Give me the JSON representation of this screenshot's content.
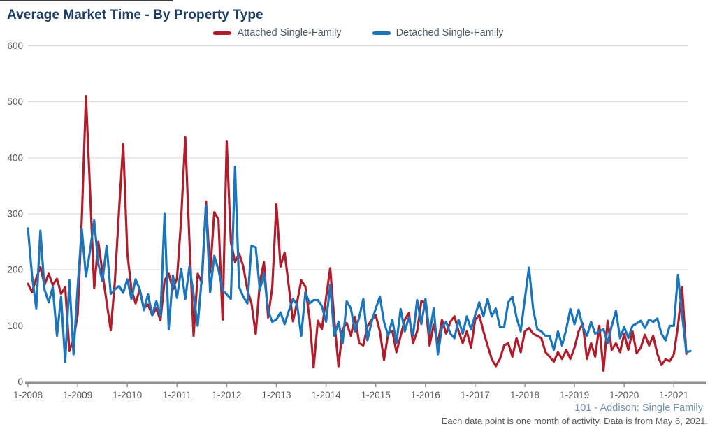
{
  "title": "Average Market Time - By Property Type",
  "legend": [
    {
      "label": "Attached Single-Family",
      "color": "#b01e2e"
    },
    {
      "label": "Detached Single-Family",
      "color": "#1b75bb"
    }
  ],
  "footer": {
    "source": "101 - Addison: Single Family",
    "note": "Each data point is one month of activity. Data is from May 6, 2021."
  },
  "colors": {
    "title": "#1d3d63",
    "axis_text": "#595959",
    "gridline": "#d6d6d6",
    "axis_line": "#8f8f8f",
    "attached": "#b01e2e",
    "detached": "#1b75bb",
    "footer_source": "#7191b3"
  },
  "chart_data": {
    "type": "line",
    "title": "Average Market Time - By Property Type",
    "xlabel": "",
    "ylabel": "",
    "ylim": [
      0,
      600
    ],
    "y_ticks": [
      0,
      100,
      200,
      300,
      400,
      500,
      600
    ],
    "x_tick_labels": [
      "1-2008",
      "1-2009",
      "1-2010",
      "1-2011",
      "1-2012",
      "1-2013",
      "1-2014",
      "1-2015",
      "1-2016",
      "1-2017",
      "1-2018",
      "1-2019",
      "1-2020",
      "1-2021"
    ],
    "x_unit": "month",
    "x_start": "1-2008",
    "x_label_interval_months": 12,
    "grid": "horizontal",
    "legend_position": "top-center",
    "series": [
      {
        "name": "Attached Single-Family",
        "color": "#b01e2e",
        "first_month": "1-2008",
        "last_month": "4-2021",
        "values": [
          175,
          160,
          185,
          205,
          173,
          193,
          173,
          184,
          157,
          169,
          55,
          76,
          120,
          290,
          510,
          340,
          167,
          250,
          195,
          142,
          92,
          180,
          305,
          425,
          230,
          165,
          140,
          165,
          131,
          138,
          119,
          131,
          110,
          181,
          193,
          165,
          185,
          290,
          437,
          250,
          82,
          193,
          177,
          322,
          195,
          303,
          290,
          111,
          429,
          250,
          214,
          229,
          206,
          164,
          140,
          85,
          177,
          214,
          115,
          169,
          317,
          206,
          231,
          170,
          108,
          142,
          181,
          170,
          113,
          26,
          109,
          94,
          150,
          203,
          110,
          28,
          94,
          105,
          82,
          116,
          69,
          65,
          99,
          111,
          119,
          90,
          39,
          87,
          91,
          53,
          82,
          111,
          123,
          69,
          90,
          144,
          142,
          65,
          102,
          69,
          111,
          86,
          107,
          117,
          90,
          69,
          90,
          61,
          111,
          119,
          90,
          65,
          41,
          28,
          41,
          65,
          69,
          45,
          78,
          53,
          90,
          96,
          86,
          82,
          78,
          53,
          45,
          36,
          53,
          41,
          57,
          41,
          61,
          90,
          104,
          41,
          69,
          45,
          100,
          20,
          109,
          57,
          69,
          53,
          86,
          57,
          90,
          51,
          61,
          84,
          65,
          82,
          50,
          30,
          40,
          37,
          49,
          100,
          169,
          50
        ]
      },
      {
        "name": "Detached Single-Family",
        "color": "#1b75bb",
        "first_month": "1-2008",
        "last_month": "5-2021",
        "values": [
          274,
          189,
          131,
          270,
          165,
          142,
          169,
          82,
          152,
          35,
          181,
          49,
          169,
          273,
          188,
          235,
          288,
          210,
          180,
          243,
          157,
          165,
          171,
          159,
          183,
          148,
          183,
          165,
          128,
          156,
          119,
          144,
          117,
          300,
          94,
          190,
          150,
          202,
          148,
          206,
          156,
          100,
          189,
          315,
          160,
          225,
          200,
          164,
          156,
          148,
          384,
          169,
          152,
          140,
          243,
          240,
          164,
          193,
          127,
          107,
          111,
          124,
          103,
          127,
          148,
          138,
          82,
          160,
          140,
          146,
          146,
          135,
          107,
          173,
          82,
          107,
          69,
          144,
          131,
          90,
          115,
          148,
          74,
          107,
          131,
          152,
          107,
          82,
          111,
          69,
          130,
          90,
          115,
          82,
          146,
          103,
          148,
          86,
          131,
          49,
          98,
          107,
          86,
          78,
          111,
          86,
          117,
          94,
          119,
          142,
          117,
          148,
          117,
          131,
          98,
          98,
          142,
          152,
          115,
          90,
          148,
          204,
          130,
          94,
          90,
          82,
          82,
          57,
          90,
          65,
          94,
          130,
          103,
          129,
          98,
          82,
          107,
          86,
          90,
          94,
          69,
          100,
          127,
          78,
          98,
          78,
          100,
          104,
          109,
          96,
          111,
          107,
          113,
          86,
          74,
          100,
          100,
          191,
          120,
          53,
          55
        ]
      }
    ]
  }
}
